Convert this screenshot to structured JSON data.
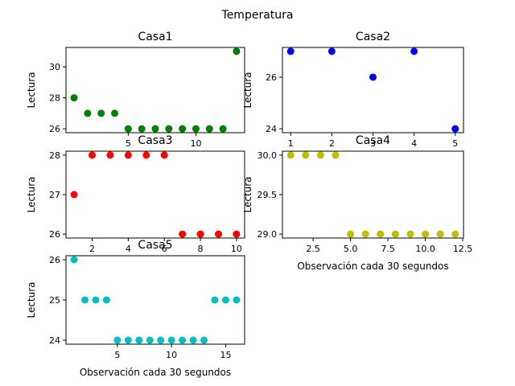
{
  "figure": {
    "title": "Temperatura"
  },
  "chart_data": [
    {
      "type": "scatter",
      "title": "Casa1",
      "xlabel": "",
      "ylabel": "Lectura",
      "color": "#008000",
      "x": [
        1,
        2,
        3,
        4,
        5,
        6,
        7,
        8,
        9,
        10,
        11,
        12,
        13
      ],
      "y": [
        28,
        27,
        27,
        27,
        26,
        26,
        26,
        26,
        26,
        26,
        26,
        26,
        31
      ],
      "xlim": [
        0.4,
        13.6
      ],
      "ylim": [
        25.75,
        31.25
      ],
      "xticks": [
        5,
        10
      ],
      "yticks": [
        26,
        28,
        30
      ]
    },
    {
      "type": "scatter",
      "title": "Casa2",
      "xlabel": "",
      "ylabel": "Lectura",
      "color": "#0000ff",
      "x": [
        1,
        2,
        3,
        4,
        5
      ],
      "y": [
        27,
        27,
        26,
        27,
        24
      ],
      "xlim": [
        0.8,
        5.2
      ],
      "ylim": [
        23.85,
        27.15
      ],
      "xticks": [
        1,
        2,
        3,
        4,
        5
      ],
      "yticks": [
        24,
        26
      ]
    },
    {
      "type": "scatter",
      "title": "Casa3",
      "xlabel": "",
      "ylabel": "Lectura",
      "color": "#ff0000",
      "x": [
        1,
        2,
        3,
        4,
        5,
        6,
        7,
        8,
        9,
        10
      ],
      "y": [
        27,
        28,
        28,
        28,
        28,
        28,
        26,
        26,
        26,
        26
      ],
      "xlim": [
        0.55,
        10.45
      ],
      "ylim": [
        25.9,
        28.1
      ],
      "xticks": [
        2,
        4,
        6,
        8,
        10
      ],
      "yticks": [
        26,
        27,
        28
      ]
    },
    {
      "type": "scatter",
      "title": "Casa4",
      "xlabel": "Observación cada 30 segundos",
      "ylabel": "Lectura",
      "color": "#bfbf00",
      "x": [
        1,
        2,
        3,
        4,
        5,
        6,
        7,
        8,
        9,
        10,
        11,
        12
      ],
      "y": [
        30,
        30,
        30,
        30,
        29,
        29,
        29,
        29,
        29,
        29,
        29,
        29
      ],
      "xlim": [
        0.45,
        12.55
      ],
      "ylim": [
        28.95,
        30.05
      ],
      "xticks": [
        2.5,
        5.0,
        7.5,
        10.0,
        12.5
      ],
      "yticks": [
        29.0,
        29.5,
        30.0
      ]
    },
    {
      "type": "scatter",
      "title": "Casa5",
      "xlabel": "Observación cada 30 segundos",
      "ylabel": "Lectura",
      "color": "#00bfbf",
      "x": [
        1,
        2,
        3,
        4,
        5,
        6,
        7,
        8,
        9,
        10,
        11,
        12,
        13,
        14,
        15,
        16
      ],
      "y": [
        26,
        25,
        25,
        25,
        24,
        24,
        24,
        24,
        24,
        24,
        24,
        24,
        24,
        25,
        25,
        25
      ],
      "xlim": [
        0.25,
        16.75
      ],
      "ylim": [
        23.9,
        26.1
      ],
      "xticks": [
        5,
        10,
        15
      ],
      "yticks": [
        24,
        25,
        26
      ]
    }
  ]
}
